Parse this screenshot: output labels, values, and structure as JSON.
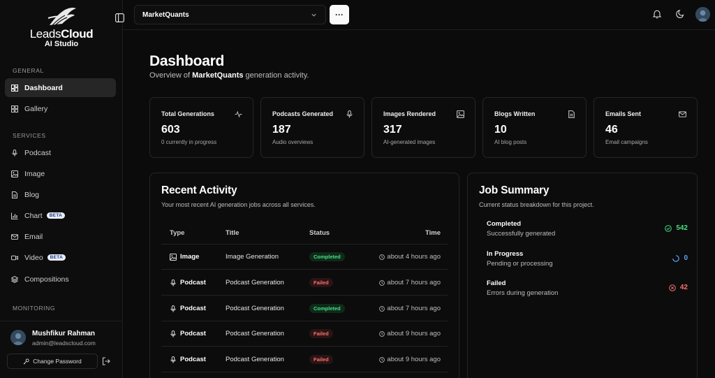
{
  "app": {
    "logo_line1_a": "Leads",
    "logo_line1_b": "Cloud",
    "logo_line2": "AI Studio"
  },
  "sidebar": {
    "section_general": "GENERAL",
    "section_services": "SERVICES",
    "section_monitoring": "MONITORING",
    "items": [
      {
        "label": "Dashboard",
        "icon": "dashboard-icon",
        "active": true
      },
      {
        "label": "Gallery",
        "icon": "grid-icon"
      },
      {
        "label": "Podcast",
        "icon": "mic-icon"
      },
      {
        "label": "Image",
        "icon": "image-icon"
      },
      {
        "label": "Blog",
        "icon": "file-icon"
      },
      {
        "label": "Chart",
        "icon": "bar-chart-icon",
        "badge": "BETA"
      },
      {
        "label": "Email",
        "icon": "mail-icon"
      },
      {
        "label": "Video",
        "icon": "video-icon",
        "badge": "BETA"
      },
      {
        "label": "Compositions",
        "icon": "layers-icon"
      }
    ],
    "user": {
      "name": "Mushfikur Rahman",
      "email": "admin@leadscloud.com"
    },
    "change_password": "Change Password"
  },
  "header": {
    "project": "MarketQuants",
    "more": "···"
  },
  "main": {
    "title": "Dashboard",
    "subtitle_prefix": "Overview of ",
    "subtitle_project": "MarketQuants",
    "subtitle_suffix": " generation activity.",
    "stats": [
      {
        "label": "Total Generations",
        "value": "603",
        "desc": "0 currently in progress",
        "icon": "activity-icon"
      },
      {
        "label": "Podcasts Generated",
        "value": "187",
        "desc": "Audio overviews",
        "icon": "mic-icon"
      },
      {
        "label": "Images Rendered",
        "value": "317",
        "desc": "AI-generated images",
        "icon": "image-icon"
      },
      {
        "label": "Blogs Written",
        "value": "10",
        "desc": "AI blog posts",
        "icon": "file-icon"
      },
      {
        "label": "Emails Sent",
        "value": "46",
        "desc": "Email campaigns",
        "icon": "mail-icon"
      }
    ],
    "recent": {
      "title": "Recent Activity",
      "subtitle": "Your most recent AI generation jobs across all services.",
      "columns": [
        "Type",
        "Title",
        "Status",
        "Time"
      ],
      "rows": [
        {
          "type": "Image",
          "title": "Image Generation",
          "status": "Completed",
          "time": "about 4 hours ago"
        },
        {
          "type": "Podcast",
          "title": "Podcast Generation",
          "status": "Failed",
          "time": "about 7 hours ago"
        },
        {
          "type": "Podcast",
          "title": "Podcast Generation",
          "status": "Completed",
          "time": "about 7 hours ago"
        },
        {
          "type": "Podcast",
          "title": "Podcast Generation",
          "status": "Failed",
          "time": "about 9 hours ago"
        },
        {
          "type": "Podcast",
          "title": "Podcast Generation",
          "status": "Failed",
          "time": "about 9 hours ago"
        }
      ]
    },
    "job_summary": {
      "title": "Job Summary",
      "subtitle": "Current status breakdown for this project.",
      "rows": [
        {
          "name": "Completed",
          "sub": "Successfully generated",
          "count": "542",
          "color": "#4ade80"
        },
        {
          "name": "In Progress",
          "sub": "Pending or processing",
          "count": "0",
          "color": "#60a5fa"
        },
        {
          "name": "Failed",
          "sub": "Errors during generation",
          "count": "42",
          "color": "#f87171"
        }
      ]
    }
  }
}
